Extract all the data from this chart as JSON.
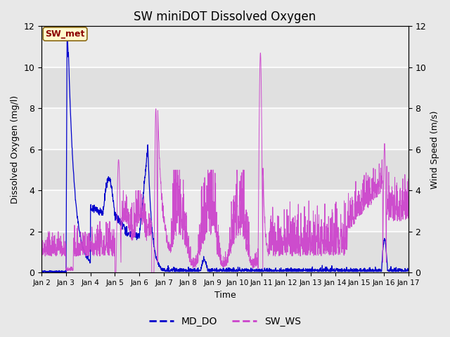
{
  "title": "SW miniDOT Dissolved Oxygen",
  "ylabel_left": "Dissolved Oxygen (mg/l)",
  "ylabel_right": "Wind Speed (m/s)",
  "xlabel": "Time",
  "annotation_text": "SW_met",
  "annotation_color": "#8B0000",
  "annotation_bg": "#FFFACD",
  "annotation_border": "#8B6914",
  "ylim_left": [
    0,
    12
  ],
  "ylim_right": [
    0,
    12
  ],
  "yticks_left": [
    0,
    2,
    4,
    6,
    8,
    10,
    12
  ],
  "yticks_right": [
    0,
    2,
    4,
    6,
    8,
    10,
    12
  ],
  "fig_bg_color": "#e8e8e8",
  "plot_bg_color": "#f2f2f2",
  "line_color_do": "#0000CC",
  "line_color_ws": "#CC44CC",
  "legend_labels": [
    "MD_DO",
    "SW_WS"
  ],
  "legend_colors": [
    "#0000CC",
    "#CC44CC"
  ],
  "xlim": [
    2,
    17
  ],
  "xtick_positions": [
    2,
    3,
    4,
    5,
    6,
    7,
    8,
    9,
    10,
    11,
    12,
    13,
    14,
    15,
    16,
    17
  ],
  "xtick_labels": [
    "Jan 2",
    "Jan 3",
    "Jan 4",
    "Jan 5",
    "Jan 6",
    "Jan 7",
    "Jan 8",
    "Jan 9",
    "Jan 10",
    "Jan 11",
    "Jan 12",
    "Jan 13",
    "Jan 14",
    "Jan 15",
    "Jan 16",
    "Jan 17"
  ]
}
